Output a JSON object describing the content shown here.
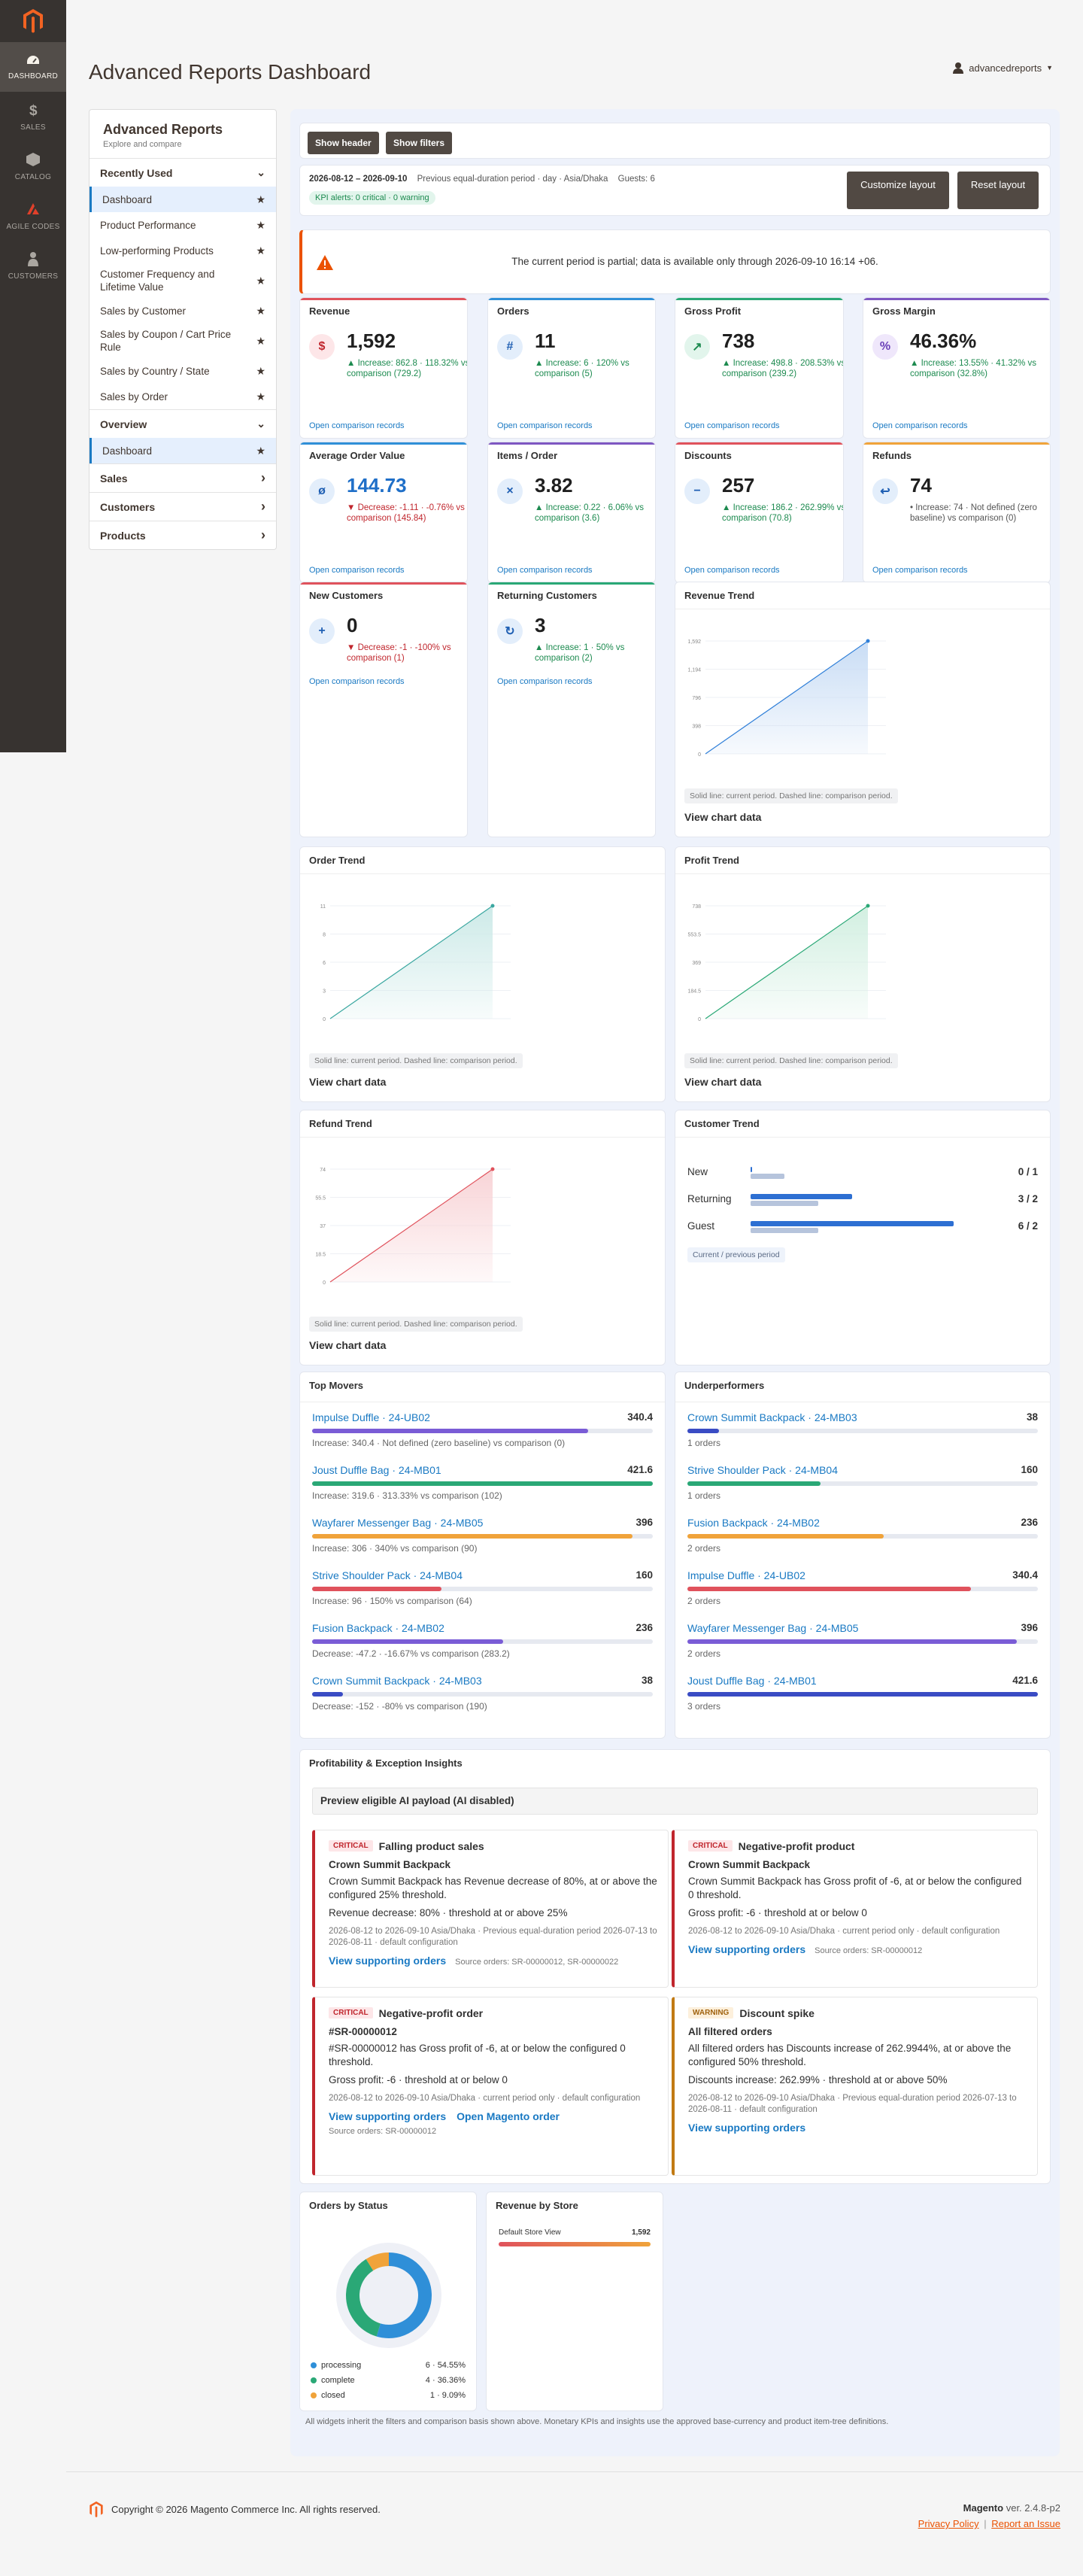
{
  "nav": [
    {
      "label": "DASHBOARD",
      "icon": "dashboard-icon"
    },
    {
      "label": "SALES",
      "icon": "dollar-icon"
    },
    {
      "label": "CATALOG",
      "icon": "box-icon"
    },
    {
      "label": "AGILE CODES",
      "icon": "agile-codes-icon"
    },
    {
      "label": "CUSTOMERS",
      "icon": "person-icon"
    }
  ],
  "header": {
    "title": "Advanced Reports Dashboard",
    "user": "advancedreports"
  },
  "sidebar": {
    "title": "Advanced Reports",
    "subtitle": "Explore and compare",
    "recently_used": "Recently Used",
    "recent_items": [
      "Dashboard",
      "Product Performance",
      "Low-performing Products",
      "Customer Frequency and Lifetime Value",
      "Sales by Customer",
      "Sales by Coupon / Cart Price Rule",
      "Sales by Country / State",
      "Sales by Order"
    ],
    "overview": "Overview",
    "overview_items": [
      "Dashboard"
    ],
    "groups": [
      "Sales",
      "Customers",
      "Products"
    ]
  },
  "toolbar": {
    "show_header": "Show header",
    "show_filters": "Show filters"
  },
  "filters": {
    "range": "2026-08-12 – 2026-09-10",
    "details": "Previous equal-duration period · day · Asia/Dhaka",
    "guests": "Guests: 6",
    "alerts": "KPI alerts: 0 critical · 0 warning",
    "customize": "Customize layout",
    "reset": "Reset layout"
  },
  "warning": "The current period is partial; data is available only through 2026-09-10 16:14 +06.",
  "kpis": [
    {
      "title": "Revenue",
      "icon": "$",
      "value": "1,592",
      "change": "▲ Increase: 862.8 · 118.32% vs comparison (729.2)",
      "dir": "pos",
      "link": "Open comparison records",
      "accent": "#e0525c",
      "iconbg": "#fde6e8",
      "iconfg": "#c0262d"
    },
    {
      "title": "Orders",
      "icon": "#",
      "value": "11",
      "change": "▲ Increase: 6 · 120% vs comparison (5)",
      "dir": "pos",
      "link": "Open comparison records",
      "accent": "#2f8fd8",
      "iconbg": "#e3eefb",
      "iconfg": "#1f5fb3"
    },
    {
      "title": "Gross Profit",
      "icon": "↗",
      "value": "738",
      "change": "▲ Increase: 498.8 · 208.53% vs comparison (239.2)",
      "dir": "pos",
      "link": "Open comparison records",
      "accent": "#2aa876",
      "iconbg": "#e2f5ec",
      "iconfg": "#1c8a4f"
    },
    {
      "title": "Gross Margin",
      "icon": "%",
      "value": "46.36%",
      "change": "▲ Increase: 13.55% · 41.32% vs comparison (32.8%)",
      "dir": "pos",
      "link": "Open comparison records",
      "accent": "#7e57c2",
      "iconbg": "#efe7fb",
      "iconfg": "#6a3fb8"
    },
    {
      "title": "Average Order Value",
      "icon": "ø",
      "value": "144.73",
      "change": "▼ Decrease: -1.11 · -0.76% vs comparison (145.84)",
      "dir": "neg",
      "link": "Open comparison records",
      "accent": "#2f8fd8",
      "iconbg": "#e3eefb",
      "iconfg": "#1f5fb3",
      "valcolor": "#1f6fc8"
    },
    {
      "title": "Items / Order",
      "icon": "×",
      "value": "3.82",
      "change": "▲ Increase: 0.22 · 6.06% vs comparison (3.6)",
      "dir": "pos",
      "link": "Open comparison records",
      "accent": "#7e57c2",
      "iconbg": "#e3eefb",
      "iconfg": "#1f5fb3"
    },
    {
      "title": "Discounts",
      "icon": "−",
      "value": "257",
      "change": "▲ Increase: 186.2 · 262.99% vs comparison (70.8)",
      "dir": "pos",
      "link": "Open comparison records",
      "accent": "#e0525c",
      "iconbg": "#e3eefb",
      "iconfg": "#1f5fb3"
    },
    {
      "title": "Refunds",
      "icon": "↩",
      "value": "74",
      "change": "• Increase: 74 · Not defined (zero baseline) vs comparison (0)",
      "dir": "neu",
      "link": "Open comparison records",
      "accent": "#f0a33a",
      "iconbg": "#e3eefb",
      "iconfg": "#1f5fb3"
    },
    {
      "title": "New Customers",
      "icon": "+",
      "value": "0",
      "change": "▼ Decrease: -1 · -100% vs comparison (1)",
      "dir": "neg",
      "link": "Open comparison records",
      "accent": "#e0525c",
      "iconbg": "#e3eefb",
      "iconfg": "#1f5fb3"
    },
    {
      "title": "Returning Customers",
      "icon": "↻",
      "value": "3",
      "change": "▲ Increase: 1 · 50% vs comparison (2)",
      "dir": "pos",
      "link": "Open comparison records",
      "accent": "#2aa876",
      "iconbg": "#e3eefb",
      "iconfg": "#1f5fb3"
    }
  ],
  "chart_data": [
    {
      "type": "area",
      "title": "Revenue Trend",
      "color": "#2f7fd8",
      "fill": "#c9ddf5",
      "ylim": [
        0,
        1592
      ],
      "yticks": [
        "0",
        "398",
        "796",
        "1,194",
        "1,592"
      ],
      "points": [
        0,
        1592
      ],
      "note": "Solid line: current period. Dashed line: comparison period.",
      "link": "View chart data"
    },
    {
      "type": "area",
      "title": "Order Trend",
      "color": "#3aa7a0",
      "fill": "#cdeae8",
      "ylim": [
        0,
        11
      ],
      "yticks": [
        "0",
        "3",
        "6",
        "8",
        "11"
      ],
      "points": [
        0,
        11
      ],
      "note": "Solid line: current period. Dashed line: comparison period.",
      "link": "View chart data"
    },
    {
      "type": "area",
      "title": "Profit Trend",
      "color": "#2aa876",
      "fill": "#d2efe1",
      "ylim": [
        0,
        738
      ],
      "yticks": [
        "0",
        "184.5",
        "369",
        "553.5",
        "738"
      ],
      "points": [
        0,
        738
      ],
      "note": "Solid line: current period. Dashed line: comparison period.",
      "link": "View chart data"
    },
    {
      "type": "area",
      "title": "Refund Trend",
      "color": "#e0525c",
      "fill": "#f8d4d7",
      "ylim": [
        0,
        74
      ],
      "yticks": [
        "0",
        "18.5",
        "37",
        "55.5",
        "74"
      ],
      "points": [
        0,
        74
      ],
      "note": "Solid line: current period. Dashed line: comparison period.",
      "link": "View chart data"
    },
    {
      "type": "bar",
      "title": "Customer Trend",
      "categories": [
        "New",
        "Returning",
        "Guest"
      ],
      "series": [
        {
          "values": [
            0,
            3,
            6
          ]
        },
        {
          "values": [
            1,
            2,
            2
          ]
        }
      ],
      "labels": [
        "0 / 1",
        "3 / 2",
        "6 / 2"
      ],
      "max": 6,
      "colors": [
        "#2d6fd2",
        "#b6c4dc"
      ],
      "note": "Current / previous period"
    },
    {
      "type": "pie",
      "title": "Orders by Status",
      "slices": [
        {
          "label": "processing",
          "value": 6,
          "text": "6 · 54.55%",
          "color": "#2f8fd8"
        },
        {
          "label": "complete",
          "value": 4,
          "text": "4 · 36.36%",
          "color": "#2aa876"
        },
        {
          "label": "closed",
          "value": 1,
          "text": "1 · 9.09%",
          "color": "#f0a33a"
        }
      ]
    },
    {
      "type": "bar",
      "title": "Revenue by Store",
      "categories": [
        "Default Store View"
      ],
      "values": [
        1592
      ],
      "labels": [
        "1,592"
      ]
    }
  ],
  "top_movers": {
    "title": "Top Movers",
    "items": [
      {
        "name": "Impulse Duffle · 24-UB02",
        "value": "340.4",
        "fill": 0.81,
        "color": "#7a5cd6",
        "sub": "Increase: 340.4 · Not defined (zero baseline) vs comparison (0)"
      },
      {
        "name": "Joust Duffle Bag · 24-MB01",
        "value": "421.6",
        "fill": 1.0,
        "color": "#2aa876",
        "sub": "Increase: 319.6 · 313.33% vs comparison (102)"
      },
      {
        "name": "Wayfarer Messenger Bag · 24-MB05",
        "value": "396",
        "fill": 0.94,
        "color": "#f0a33a",
        "sub": "Increase: 306 · 340% vs comparison (90)"
      },
      {
        "name": "Strive Shoulder Pack · 24-MB04",
        "value": "160",
        "fill": 0.38,
        "color": "#e0525c",
        "sub": "Increase: 96 · 150% vs comparison (64)"
      },
      {
        "name": "Fusion Backpack · 24-MB02",
        "value": "236",
        "fill": 0.56,
        "color": "#7a5cd6",
        "sub": "Decrease: -47.2 · -16.67% vs comparison (283.2)"
      },
      {
        "name": "Crown Summit Backpack · 24-MB03",
        "value": "38",
        "fill": 0.09,
        "color": "#3a4cc4",
        "sub": "Decrease: -152 · -80% vs comparison (190)"
      }
    ]
  },
  "underperformers": {
    "title": "Underperformers",
    "items": [
      {
        "name": "Crown Summit Backpack · 24-MB03",
        "value": "38",
        "fill": 0.09,
        "color": "#3a4cc4",
        "sub": "1 orders"
      },
      {
        "name": "Strive Shoulder Pack · 24-MB04",
        "value": "160",
        "fill": 0.38,
        "color": "#2aa876",
        "sub": "1 orders"
      },
      {
        "name": "Fusion Backpack · 24-MB02",
        "value": "236",
        "fill": 0.56,
        "color": "#f0a33a",
        "sub": "2 orders"
      },
      {
        "name": "Impulse Duffle · 24-UB02",
        "value": "340.4",
        "fill": 0.81,
        "color": "#e0525c",
        "sub": "2 orders"
      },
      {
        "name": "Wayfarer Messenger Bag · 24-MB05",
        "value": "396",
        "fill": 0.94,
        "color": "#7a5cd6",
        "sub": "2 orders"
      },
      {
        "name": "Joust Duffle Bag · 24-MB01",
        "value": "421.6",
        "fill": 1.0,
        "color": "#3a4cc4",
        "sub": "3 orders"
      }
    ]
  },
  "insights": {
    "title": "Profitability & Exception Insights",
    "preview": "Preview eligible AI payload (AI disabled)",
    "cards": [
      {
        "level": "CRITICAL",
        "title": "Falling product sales",
        "subject": "Crown Summit Backpack",
        "desc": "Crown Summit Backpack has Revenue decrease of 80%, at or above the configured 25% threshold.",
        "metric": "Revenue decrease: 80% · threshold at or above 25%",
        "meta": "2026-08-12 to 2026-09-10 Asia/Dhaka · Previous equal-duration period 2026-07-13 to 2026-08-11 · default configuration",
        "link": "View supporting orders",
        "link2": "",
        "source": "Source orders: SR-00000012, SR-00000022"
      },
      {
        "level": "CRITICAL",
        "title": "Negative-profit product",
        "subject": "Crown Summit Backpack",
        "desc": "Crown Summit Backpack has Gross profit of -6, at or below the configured 0 threshold.",
        "metric": "Gross profit: -6 · threshold at or below 0",
        "meta": "2026-08-12 to 2026-09-10 Asia/Dhaka · current period only · default configuration",
        "link": "View supporting orders",
        "link2": "",
        "source": "Source orders: SR-00000012"
      },
      {
        "level": "CRITICAL",
        "title": "Negative-profit order",
        "subject": "#SR-00000012",
        "desc": "#SR-00000012 has Gross profit of -6, at or below the configured 0 threshold.",
        "metric": "Gross profit: -6 · threshold at or below 0",
        "meta": "2026-08-12 to 2026-09-10 Asia/Dhaka · current period only · default configuration",
        "link": "View supporting orders",
        "link2": "Open Magento order",
        "source": "Source orders: SR-00000012"
      },
      {
        "level": "WARNING",
        "title": "Discount spike",
        "subject": "All filtered orders",
        "desc": "All filtered orders has Discounts increase of 262.9944%, at or above the configured 50% threshold.",
        "metric": "Discounts increase: 262.99% · threshold at or above 50%",
        "meta": "2026-08-12 to 2026-09-10 Asia/Dhaka · Previous equal-duration period 2026-07-13 to 2026-08-11 · default configuration",
        "link": "View supporting orders",
        "link2": "",
        "source": ""
      }
    ]
  },
  "footnote": "All widgets inherit the filters and comparison basis shown above. Monetary KPIs and insights use the approved base-currency and product item-tree definitions.",
  "footer": {
    "copyright": "Copyright © 2026 Magento Commerce Inc. All rights reserved.",
    "brand": "Magento",
    "version": "ver. 2.4.8-p2",
    "privacy": "Privacy Policy",
    "report": "Report an Issue",
    "sep": "|"
  },
  "colors": {
    "accent": "#1979c3",
    "brand": "#eb5202",
    "nav_bg": "#373330"
  }
}
